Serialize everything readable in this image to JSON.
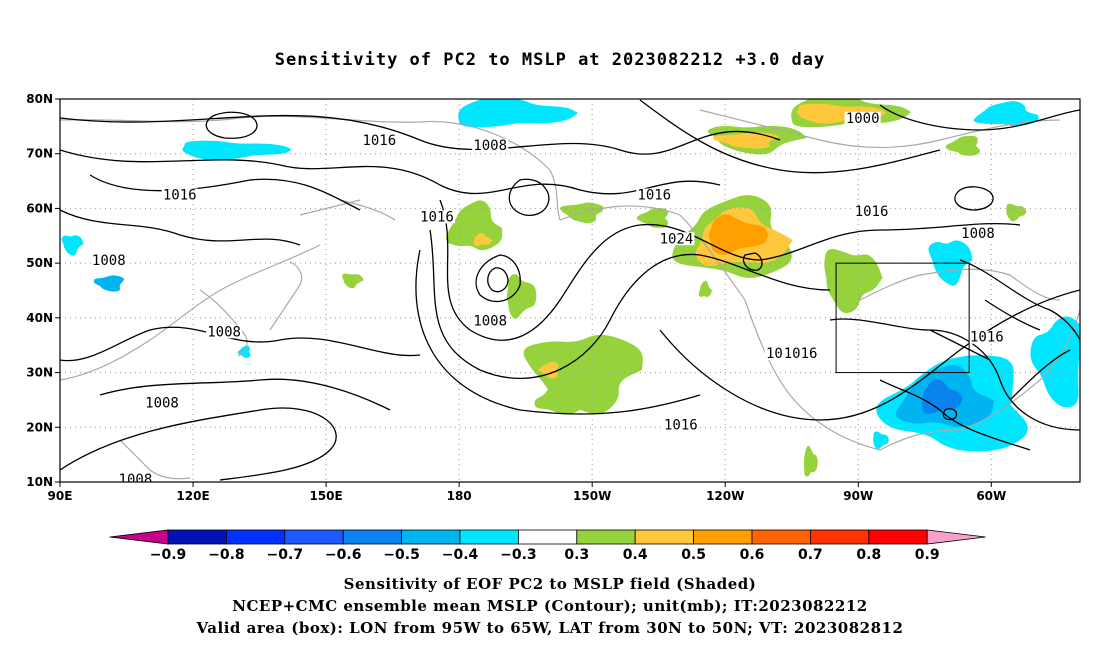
{
  "title": "Sensitivity of PC2 to MSLP at 2023082212 +3.0 day",
  "map": {
    "lat_labels": [
      "80N",
      "70N",
      "60N",
      "50N",
      "40N",
      "30N",
      "20N",
      "10N"
    ],
    "lon_labels": [
      "90E",
      "120E",
      "150E",
      "180",
      "150W",
      "120W",
      "90W",
      "60W"
    ],
    "lon_range": [
      90,
      320
    ],
    "lat_range": [
      10,
      80
    ],
    "validation_box": {
      "lon": [
        265,
        295
      ],
      "lat": [
        30,
        50
      ]
    },
    "contour_labels": [
      {
        "text": "1016",
        "lon": 162,
        "lat": 72
      },
      {
        "text": "1008",
        "lon": 187,
        "lat": 71
      },
      {
        "text": "1000",
        "lon": 271,
        "lat": 76
      },
      {
        "text": "1016",
        "lon": 117,
        "lat": 62
      },
      {
        "text": "1016",
        "lon": 175,
        "lat": 58
      },
      {
        "text": "1016",
        "lon": 224,
        "lat": 62
      },
      {
        "text": "1024",
        "lon": 229,
        "lat": 54
      },
      {
        "text": "1016",
        "lon": 273,
        "lat": 59
      },
      {
        "text": "1008",
        "lon": 101,
        "lat": 50
      },
      {
        "text": "1008",
        "lon": 297,
        "lat": 55
      },
      {
        "text": "1008",
        "lon": 127,
        "lat": 37
      },
      {
        "text": "1008",
        "lon": 187,
        "lat": 39
      },
      {
        "text": "1008",
        "lon": 253,
        "lat": 33
      },
      {
        "text": "1016",
        "lon": 257,
        "lat": 33
      },
      {
        "text": "1016",
        "lon": 299,
        "lat": 36
      },
      {
        "text": "1016",
        "lon": 230,
        "lat": 20
      },
      {
        "text": "1008",
        "lon": 113,
        "lat": 24
      },
      {
        "text": "1008",
        "lon": 107,
        "lat": 10
      }
    ]
  },
  "colorbar": {
    "labels": [
      "-0.9",
      "-0.8",
      "-0.7",
      "-0.6",
      "-0.5",
      "-0.4",
      "-0.3",
      "0.3",
      "0.4",
      "0.5",
      "0.6",
      "0.7",
      "0.8",
      "0.9"
    ],
    "colors": [
      "#c8008c",
      "#0014b4",
      "#0032ff",
      "#1e5aff",
      "#0a82f0",
      "#00b4f0",
      "#00e6ff",
      "#ffffff",
      "#96d23c",
      "#ffc83c",
      "#ffa000",
      "#ff6400",
      "#ff3200",
      "#ff0000",
      "#f8a0c8"
    ]
  },
  "captions": {
    "line1": "Sensitivity of EOF PC2 to MSLP field (Shaded)",
    "line2": "NCEP+CMC ensemble mean MSLP (Contour); unit(mb); IT:2023082212",
    "line3": "Valid area (box): LON from 95W to 65W, LAT from 30N to 50N; VT: 2023082812"
  }
}
